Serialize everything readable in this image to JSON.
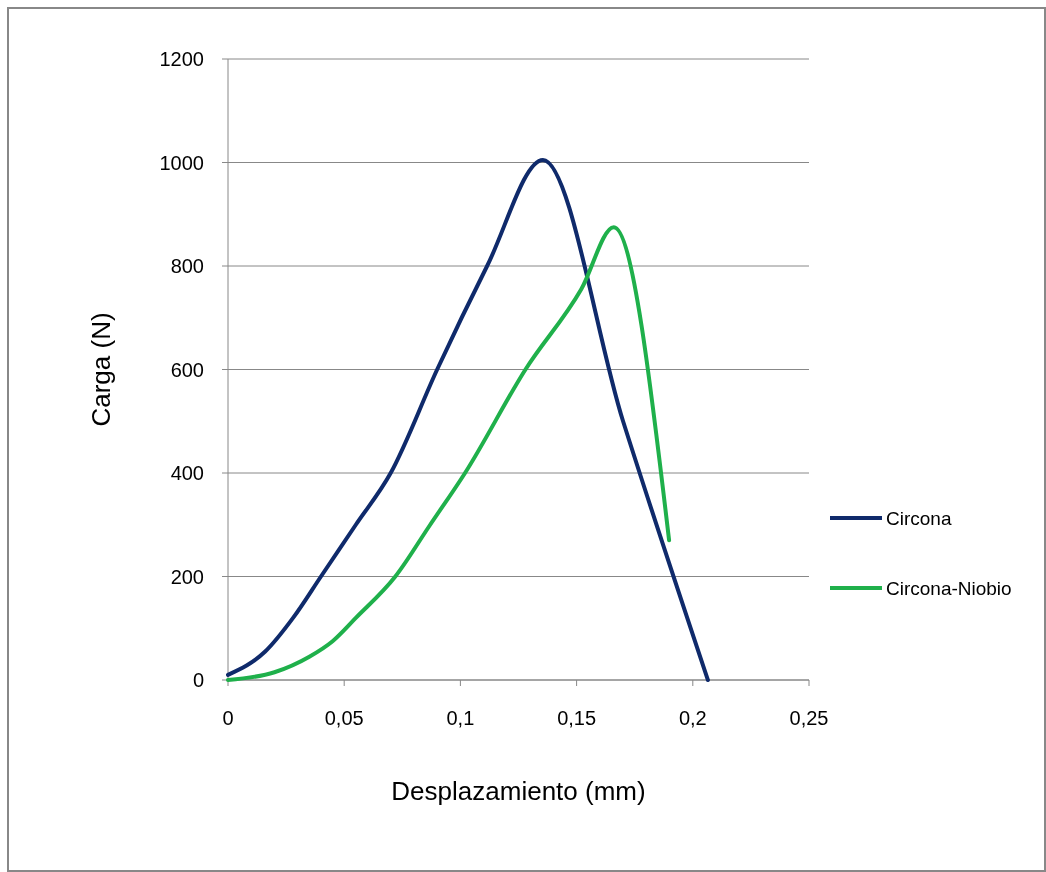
{
  "chart_data": {
    "type": "line",
    "xlabel": "Desplazamiento (mm)",
    "ylabel": "Carga (N)",
    "xlim": [
      0,
      0.25
    ],
    "xticks": [
      {
        "value": 0,
        "label": "0"
      },
      {
        "value": 0.05,
        "label": "0,05"
      },
      {
        "value": 0.1,
        "label": "0,1"
      },
      {
        "value": 0.15,
        "label": "0,15"
      },
      {
        "value": 0.2,
        "label": "0,2"
      },
      {
        "value": 0.25,
        "label": "0,25"
      }
    ],
    "ylim": [
      0,
      1200
    ],
    "yticks": [
      0,
      200,
      400,
      600,
      800,
      1000,
      1200
    ],
    "grid": "y",
    "legend": "right",
    "line_style": "solid",
    "series": [
      {
        "name": "Circona",
        "color": "#0f2a6b",
        "x": [
          0,
          0.016,
          0.028,
          0.04,
          0.055,
          0.07,
          0.09,
          0.1115,
          0.1355,
          0.17,
          0.2065
        ],
        "values": [
          10,
          55,
          120,
          200,
          300,
          400,
          600,
          800,
          1005,
          500,
          0
        ]
      },
      {
        "name": "Circona-Niobio",
        "color": "#1fb04b",
        "x": [
          0,
          0.02,
          0.035,
          0.045,
          0.055,
          0.072,
          0.087,
          0.102,
          0.128,
          0.152,
          0.166,
          0.1898
        ],
        "values": [
          0,
          15,
          45,
          75,
          120,
          200,
          300,
          400,
          600,
          755,
          875,
          270
        ]
      }
    ]
  }
}
